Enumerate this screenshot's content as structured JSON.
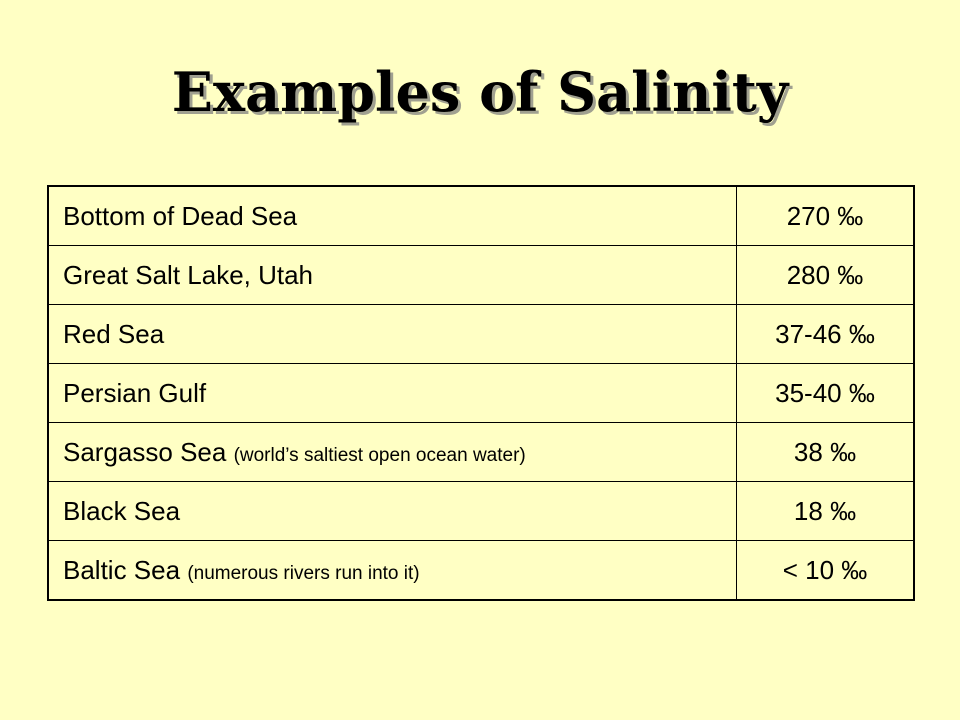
{
  "title": "Examples of Salinity",
  "table": {
    "rows": [
      {
        "name": "Bottom of Dead Sea",
        "value": "270 ‰"
      },
      {
        "name": "Great Salt Lake, Utah",
        "value": "280 ‰"
      },
      {
        "name": "Red Sea",
        "value": "37-46 ‰"
      },
      {
        "name": "Persian Gulf",
        "value": "35-40 ‰"
      },
      {
        "name": "Sargasso Sea",
        "note": "(world’s saltiest open ocean water)",
        "value": "38 ‰"
      },
      {
        "name": "Black Sea",
        "value": "18 ‰"
      },
      {
        "name": "Baltic Sea",
        "note": "(numerous rivers run into it)",
        "value": "< 10 ‰"
      }
    ]
  }
}
